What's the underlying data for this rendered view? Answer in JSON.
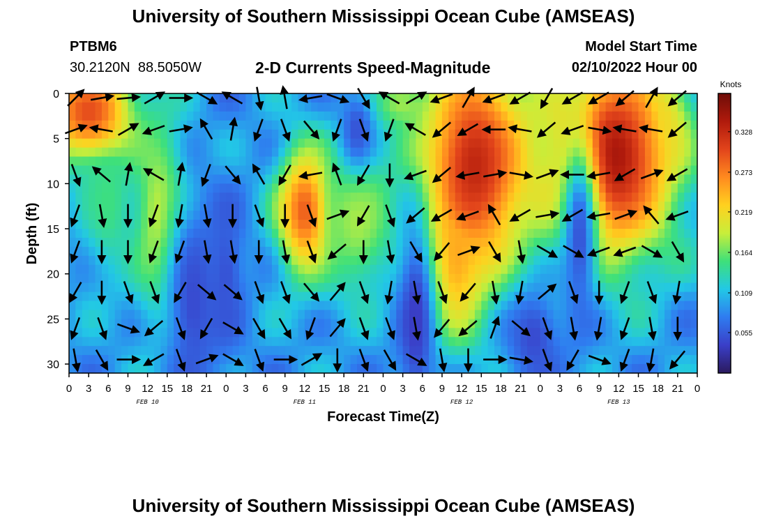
{
  "page": {
    "title_top": "University of Southern Mississippi Ocean Cube (AMSEAS)",
    "title_bottom": "University of Southern Mississippi Ocean Cube (AMSEAS)",
    "station_id": "PTBM6",
    "station_coords": "30.2120N  88.5050W",
    "chart_title": "2-D Currents Speed-Magnitude",
    "model_start_label": "Model Start Time",
    "model_start_value": "02/10/2022 Hour 00"
  },
  "colors": {
    "scale": [
      "#2b1a5e",
      "#3a3fc8",
      "#2f7cf0",
      "#22c8e6",
      "#3ee07a",
      "#c8ee3a",
      "#ffd11f",
      "#ff8a1f",
      "#e2441b",
      "#b01a0c",
      "#6e0d08"
    ],
    "arrow": "#000000"
  },
  "chart_data": {
    "type": "heatmap",
    "title": "2-D Currents Speed-Magnitude",
    "xlabel": "Forecast Time(Z)",
    "ylabel": "Depth (ft)",
    "colorbar_label": "Knots",
    "colorbar_ticks": [
      "0.328",
      "0.273",
      "0.219",
      "0.164",
      "0.109",
      "0.055"
    ],
    "colorbar_tick_values": [
      0.328,
      0.273,
      0.219,
      0.164,
      0.109,
      0.055
    ],
    "colorbar_range": [
      0,
      0.38
    ],
    "xlim": [
      0,
      96
    ],
    "ylim": [
      31,
      0
    ],
    "x_ticks": [
      0,
      3,
      6,
      9,
      12,
      15,
      18,
      21,
      24,
      27,
      30,
      33,
      36,
      39,
      42,
      45,
      48,
      51,
      54,
      57,
      60,
      63,
      66,
      69,
      72,
      75,
      78,
      81,
      84,
      87,
      90,
      93,
      96
    ],
    "x_tick_labels": [
      "0",
      "3",
      "6",
      "9",
      "12",
      "15",
      "18",
      "21",
      "0",
      "3",
      "6",
      "9",
      "12",
      "15",
      "18",
      "21",
      "0",
      "3",
      "6",
      "9",
      "12",
      "15",
      "18",
      "21",
      "0",
      "3",
      "6",
      "9",
      "12",
      "15",
      "18",
      "21",
      "0"
    ],
    "y_ticks": [
      0,
      5,
      10,
      15,
      20,
      25,
      30
    ],
    "y_tick_labels": [
      "0",
      "5",
      "10",
      "15",
      "20",
      "25",
      "30"
    ],
    "day_labels": [
      {
        "x": 12,
        "label": "FEB 10"
      },
      {
        "x": 36,
        "label": "FEB 11"
      },
      {
        "x": 60,
        "label": "FEB 12"
      },
      {
        "x": 84,
        "label": "FEB 13"
      }
    ],
    "speed_blobs_note_units": "knots",
    "speed_features": [
      {
        "t": 3,
        "d": 2,
        "st": 5,
        "sd": 4,
        "v": 0.3
      },
      {
        "t": 14,
        "d": 14,
        "st": 3,
        "sd": 8,
        "v": 0.2
      },
      {
        "t": 6,
        "d": 12,
        "st": 3,
        "sd": 6,
        "v": 0.15
      },
      {
        "t": 36,
        "d": 13,
        "st": 3,
        "sd": 5,
        "v": 0.29
      },
      {
        "t": 44,
        "d": 14,
        "st": 4,
        "sd": 6,
        "v": 0.18
      },
      {
        "t": 50,
        "d": 1,
        "st": 3,
        "sd": 2,
        "v": 0.16
      },
      {
        "t": 62,
        "d": 8,
        "st": 6,
        "sd": 9,
        "v": 0.33
      },
      {
        "t": 59,
        "d": 18,
        "st": 3,
        "sd": 6,
        "v": 0.25
      },
      {
        "t": 83,
        "d": 7,
        "st": 7,
        "sd": 8,
        "v": 0.35
      },
      {
        "t": 90,
        "d": 3,
        "st": 3,
        "sd": 3,
        "v": 0.22
      }
    ],
    "speed_minima": [
      {
        "t": 53,
        "d": 25,
        "st": 2,
        "sd": 8,
        "v": 0.035
      },
      {
        "t": 44,
        "d": 4,
        "st": 1.8,
        "sd": 3,
        "v": 0.05
      },
      {
        "t": 19,
        "d": 23,
        "st": 3,
        "sd": 8,
        "v": 0.045
      },
      {
        "t": 71,
        "d": 27,
        "st": 3,
        "sd": 4,
        "v": 0.045
      },
      {
        "t": 78,
        "d": 16,
        "st": 2,
        "sd": 8,
        "v": 0.05
      },
      {
        "t": 24,
        "d": 20,
        "st": 2,
        "sd": 6,
        "v": 0.05
      }
    ],
    "vectors": {
      "times": [
        1,
        5,
        9,
        13,
        17,
        21,
        25,
        29,
        33,
        37,
        41,
        45,
        49,
        53,
        57,
        61,
        65,
        69,
        73,
        77,
        81,
        85,
        89,
        93
      ],
      "depths": [
        0.5,
        4,
        9,
        13.5,
        17.5,
        22,
        26,
        29.5
      ],
      "directions_deg": [
        [
          45,
          80,
          85,
          60,
          90,
          120,
          300,
          170,
          350,
          260,
          110,
          150,
          300,
          60,
          250,
          30,
          250,
          240,
          210,
          240,
          240,
          230,
          30,
          230
        ],
        [
          70,
          280,
          60,
          250,
          80,
          330,
          10,
          200,
          160,
          140,
          200,
          160,
          200,
          300,
          230,
          240,
          270,
          280,
          230,
          250,
          100,
          280,
          280,
          230
        ],
        [
          160,
          310,
          10,
          300,
          10,
          200,
          140,
          330,
          210,
          260,
          340,
          210,
          180,
          250,
          230,
          260,
          80,
          100,
          70,
          270,
          260,
          240,
          70,
          240
        ],
        [
          200,
          170,
          180,
          200,
          190,
          170,
          180,
          160,
          180,
          160,
          70,
          210,
          160,
          230,
          240,
          250,
          330,
          240,
          80,
          240,
          260,
          70,
          320,
          250
        ],
        [
          200,
          180,
          180,
          200,
          200,
          170,
          170,
          180,
          170,
          160,
          230,
          180,
          170,
          150,
          220,
          70,
          150,
          170,
          120,
          120,
          250,
          250,
          120,
          150
        ],
        [
          210,
          180,
          160,
          160,
          210,
          130,
          130,
          160,
          160,
          140,
          40,
          160,
          190,
          170,
          160,
          220,
          170,
          190,
          50,
          160,
          180,
          200,
          160,
          190
        ],
        [
          200,
          160,
          110,
          230,
          160,
          210,
          120,
          150,
          150,
          200,
          40,
          160,
          160,
          170,
          220,
          230,
          20,
          130,
          160,
          170,
          190,
          200,
          170,
          180
        ],
        [
          170,
          150,
          90,
          240,
          160,
          70,
          120,
          160,
          90,
          60,
          180,
          160,
          150,
          120,
          170,
          180,
          90,
          100,
          160,
          210,
          110,
          200,
          190,
          220
        ]
      ]
    }
  }
}
